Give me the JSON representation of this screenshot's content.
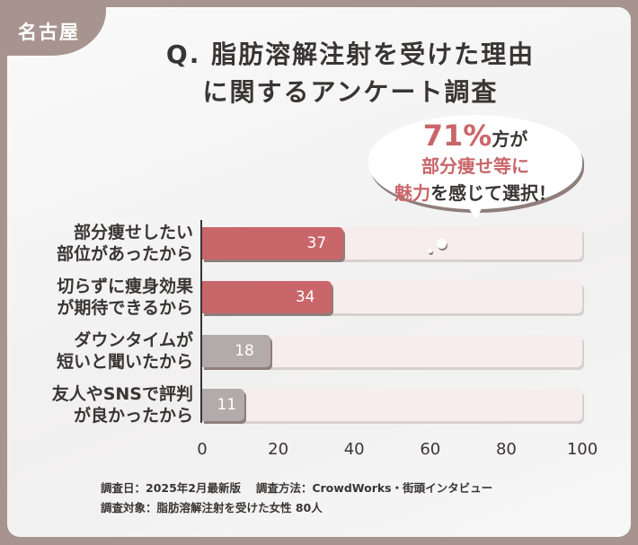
{
  "region_tag": "名古屋",
  "title_line1": "Q. 脂肪溶解注射を受けた理由",
  "title_line2": "に関するアンケート調査",
  "callout": {
    "percent": "71%",
    "line1_rest": "方が",
    "line2": "部分痩せ等に",
    "line3_em": "魅力",
    "line3_rest": "を感じて選択！"
  },
  "chart_data": {
    "type": "bar",
    "orientation": "horizontal",
    "xlim": [
      0,
      100
    ],
    "xticks": [
      "0",
      "20",
      "40",
      "60",
      "80",
      "100"
    ],
    "categories": [
      [
        "部分痩せしたい",
        "部位があったから"
      ],
      [
        "切らずに痩身効果",
        "が期待できるから"
      ],
      [
        "ダウンタイムが",
        "短いと聞いたから"
      ],
      [
        "友人やSNSで評判",
        "が良かったから"
      ]
    ],
    "values": [
      37,
      34,
      18,
      11
    ],
    "colors": [
      "#c9666a",
      "#c9666a",
      "#b3abab",
      "#b3abab"
    ]
  },
  "footer": {
    "line1": "調査日：2025年2月最新版　 調査方法：CrowdWorks・街頭インタビュー",
    "line2": "調査対象：脂肪溶解注射を受けた女性 80人"
  }
}
